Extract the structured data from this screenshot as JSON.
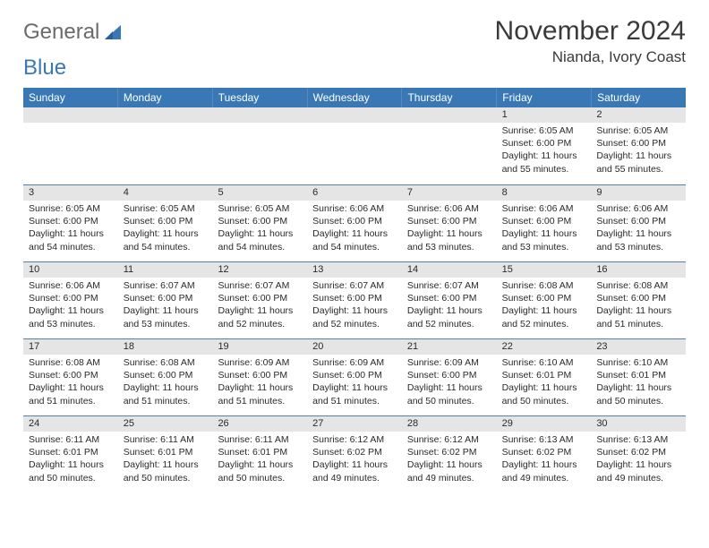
{
  "logo": {
    "text1": "General",
    "text2": "Blue"
  },
  "title": "November 2024",
  "location": "Nianda, Ivory Coast",
  "colors": {
    "header_bg": "#3a78b5",
    "daynum_bg": "#e5e5e5",
    "border": "#5a7ea3",
    "text": "#2a2a2a",
    "logo_gray": "#6a6a6a"
  },
  "days_of_week": [
    "Sunday",
    "Monday",
    "Tuesday",
    "Wednesday",
    "Thursday",
    "Friday",
    "Saturday"
  ],
  "weeks": [
    [
      {
        "n": "",
        "sr": "",
        "ss": "",
        "dl": ""
      },
      {
        "n": "",
        "sr": "",
        "ss": "",
        "dl": ""
      },
      {
        "n": "",
        "sr": "",
        "ss": "",
        "dl": ""
      },
      {
        "n": "",
        "sr": "",
        "ss": "",
        "dl": ""
      },
      {
        "n": "",
        "sr": "",
        "ss": "",
        "dl": ""
      },
      {
        "n": "1",
        "sr": "Sunrise: 6:05 AM",
        "ss": "Sunset: 6:00 PM",
        "dl": "Daylight: 11 hours and 55 minutes."
      },
      {
        "n": "2",
        "sr": "Sunrise: 6:05 AM",
        "ss": "Sunset: 6:00 PM",
        "dl": "Daylight: 11 hours and 55 minutes."
      }
    ],
    [
      {
        "n": "3",
        "sr": "Sunrise: 6:05 AM",
        "ss": "Sunset: 6:00 PM",
        "dl": "Daylight: 11 hours and 54 minutes."
      },
      {
        "n": "4",
        "sr": "Sunrise: 6:05 AM",
        "ss": "Sunset: 6:00 PM",
        "dl": "Daylight: 11 hours and 54 minutes."
      },
      {
        "n": "5",
        "sr": "Sunrise: 6:05 AM",
        "ss": "Sunset: 6:00 PM",
        "dl": "Daylight: 11 hours and 54 minutes."
      },
      {
        "n": "6",
        "sr": "Sunrise: 6:06 AM",
        "ss": "Sunset: 6:00 PM",
        "dl": "Daylight: 11 hours and 54 minutes."
      },
      {
        "n": "7",
        "sr": "Sunrise: 6:06 AM",
        "ss": "Sunset: 6:00 PM",
        "dl": "Daylight: 11 hours and 53 minutes."
      },
      {
        "n": "8",
        "sr": "Sunrise: 6:06 AM",
        "ss": "Sunset: 6:00 PM",
        "dl": "Daylight: 11 hours and 53 minutes."
      },
      {
        "n": "9",
        "sr": "Sunrise: 6:06 AM",
        "ss": "Sunset: 6:00 PM",
        "dl": "Daylight: 11 hours and 53 minutes."
      }
    ],
    [
      {
        "n": "10",
        "sr": "Sunrise: 6:06 AM",
        "ss": "Sunset: 6:00 PM",
        "dl": "Daylight: 11 hours and 53 minutes."
      },
      {
        "n": "11",
        "sr": "Sunrise: 6:07 AM",
        "ss": "Sunset: 6:00 PM",
        "dl": "Daylight: 11 hours and 53 minutes."
      },
      {
        "n": "12",
        "sr": "Sunrise: 6:07 AM",
        "ss": "Sunset: 6:00 PM",
        "dl": "Daylight: 11 hours and 52 minutes."
      },
      {
        "n": "13",
        "sr": "Sunrise: 6:07 AM",
        "ss": "Sunset: 6:00 PM",
        "dl": "Daylight: 11 hours and 52 minutes."
      },
      {
        "n": "14",
        "sr": "Sunrise: 6:07 AM",
        "ss": "Sunset: 6:00 PM",
        "dl": "Daylight: 11 hours and 52 minutes."
      },
      {
        "n": "15",
        "sr": "Sunrise: 6:08 AM",
        "ss": "Sunset: 6:00 PM",
        "dl": "Daylight: 11 hours and 52 minutes."
      },
      {
        "n": "16",
        "sr": "Sunrise: 6:08 AM",
        "ss": "Sunset: 6:00 PM",
        "dl": "Daylight: 11 hours and 51 minutes."
      }
    ],
    [
      {
        "n": "17",
        "sr": "Sunrise: 6:08 AM",
        "ss": "Sunset: 6:00 PM",
        "dl": "Daylight: 11 hours and 51 minutes."
      },
      {
        "n": "18",
        "sr": "Sunrise: 6:08 AM",
        "ss": "Sunset: 6:00 PM",
        "dl": "Daylight: 11 hours and 51 minutes."
      },
      {
        "n": "19",
        "sr": "Sunrise: 6:09 AM",
        "ss": "Sunset: 6:00 PM",
        "dl": "Daylight: 11 hours and 51 minutes."
      },
      {
        "n": "20",
        "sr": "Sunrise: 6:09 AM",
        "ss": "Sunset: 6:00 PM",
        "dl": "Daylight: 11 hours and 51 minutes."
      },
      {
        "n": "21",
        "sr": "Sunrise: 6:09 AM",
        "ss": "Sunset: 6:00 PM",
        "dl": "Daylight: 11 hours and 50 minutes."
      },
      {
        "n": "22",
        "sr": "Sunrise: 6:10 AM",
        "ss": "Sunset: 6:01 PM",
        "dl": "Daylight: 11 hours and 50 minutes."
      },
      {
        "n": "23",
        "sr": "Sunrise: 6:10 AM",
        "ss": "Sunset: 6:01 PM",
        "dl": "Daylight: 11 hours and 50 minutes."
      }
    ],
    [
      {
        "n": "24",
        "sr": "Sunrise: 6:11 AM",
        "ss": "Sunset: 6:01 PM",
        "dl": "Daylight: 11 hours and 50 minutes."
      },
      {
        "n": "25",
        "sr": "Sunrise: 6:11 AM",
        "ss": "Sunset: 6:01 PM",
        "dl": "Daylight: 11 hours and 50 minutes."
      },
      {
        "n": "26",
        "sr": "Sunrise: 6:11 AM",
        "ss": "Sunset: 6:01 PM",
        "dl": "Daylight: 11 hours and 50 minutes."
      },
      {
        "n": "27",
        "sr": "Sunrise: 6:12 AM",
        "ss": "Sunset: 6:02 PM",
        "dl": "Daylight: 11 hours and 49 minutes."
      },
      {
        "n": "28",
        "sr": "Sunrise: 6:12 AM",
        "ss": "Sunset: 6:02 PM",
        "dl": "Daylight: 11 hours and 49 minutes."
      },
      {
        "n": "29",
        "sr": "Sunrise: 6:13 AM",
        "ss": "Sunset: 6:02 PM",
        "dl": "Daylight: 11 hours and 49 minutes."
      },
      {
        "n": "30",
        "sr": "Sunrise: 6:13 AM",
        "ss": "Sunset: 6:02 PM",
        "dl": "Daylight: 11 hours and 49 minutes."
      }
    ]
  ]
}
